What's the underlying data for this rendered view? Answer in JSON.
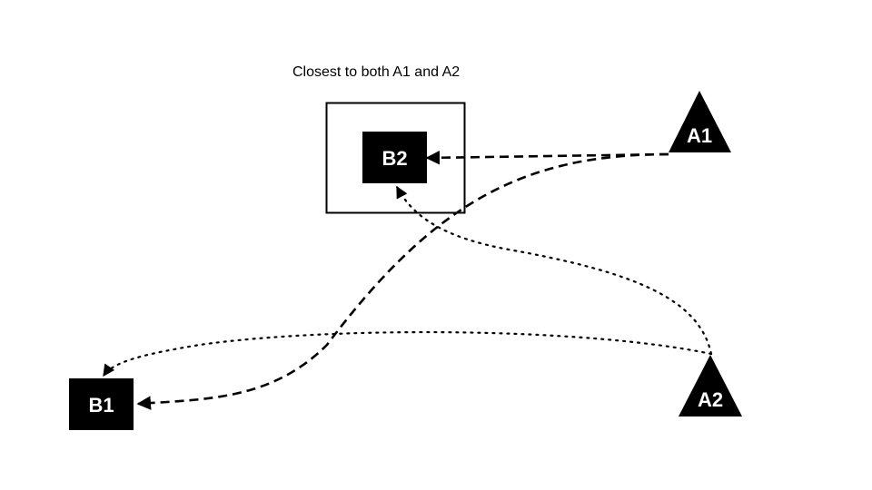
{
  "caption": "Closest to both A1 and A2",
  "nodes": {
    "a1": {
      "label": "A1",
      "shape": "triangle"
    },
    "a2": {
      "label": "A2",
      "shape": "triangle"
    },
    "b1": {
      "label": "B1",
      "shape": "square"
    },
    "b2": {
      "label": "B2",
      "shape": "square",
      "highlighted": true
    }
  },
  "edges": [
    {
      "from": "A1",
      "to": "B2",
      "style": "dashed"
    },
    {
      "from": "A1",
      "to": "B1",
      "style": "dashed"
    },
    {
      "from": "A2",
      "to": "B2",
      "style": "dotted"
    },
    {
      "from": "A2",
      "to": "B1",
      "style": "dotted"
    }
  ],
  "colors": {
    "node_fill": "#000000",
    "node_text": "#ffffff",
    "line": "#000000",
    "background": "#ffffff"
  }
}
